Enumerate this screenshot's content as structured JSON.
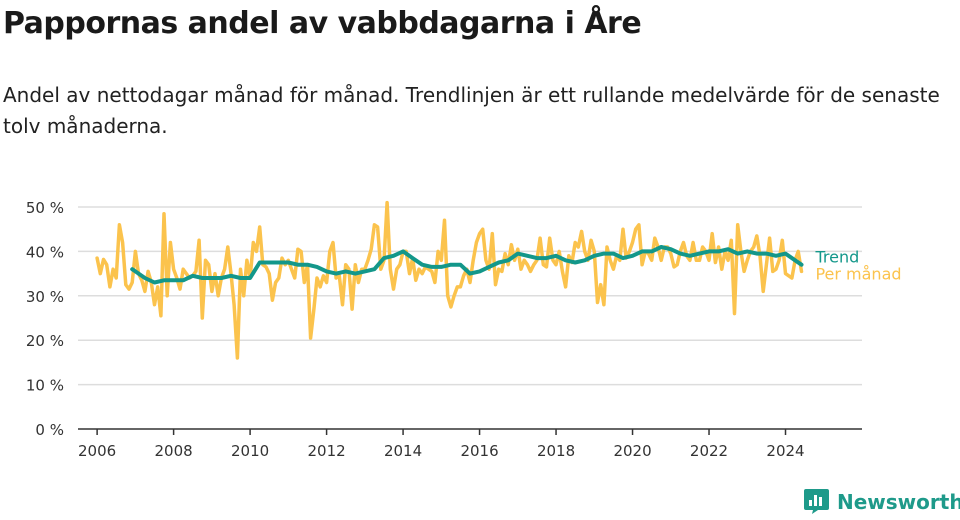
{
  "title": "Pappornas andel av vabbdagarna i Åre",
  "subtitle": "Andel av nettodagar månad för månad. Trendlinjen är ett rullande medelvärde för de senaste tolv månaderna.",
  "brand": "Newsworthy",
  "colors": {
    "monthly": "#fbc34d",
    "trend": "#13978a",
    "grid": "#dddddd",
    "axis": "#333333"
  },
  "chart_data": {
    "type": "line",
    "y_tick_labels": [
      "0 %",
      "10 %",
      "20 %",
      "30 %",
      "40 %",
      "50 %"
    ],
    "y_ticks": [
      0,
      10,
      20,
      30,
      40,
      50
    ],
    "x_tick_labels": [
      "2006",
      "2008",
      "2010",
      "2012",
      "2014",
      "2016",
      "2018",
      "2020",
      "2022",
      "2024"
    ],
    "x_ticks": [
      2006,
      2008,
      2010,
      2012,
      2014,
      2016,
      2018,
      2020,
      2022,
      2024
    ],
    "xlim": [
      2005.5,
      2026.0
    ],
    "ylim": [
      0,
      52
    ],
    "series": [
      {
        "name": "Per månad",
        "label": "Per månad",
        "x": [
          2006.0,
          2006.083,
          2006.167,
          2006.25,
          2006.333,
          2006.417,
          2006.5,
          2006.583,
          2006.667,
          2006.75,
          2006.833,
          2006.917,
          2007.0,
          2007.083,
          2007.167,
          2007.25,
          2007.333,
          2007.417,
          2007.5,
          2007.583,
          2007.667,
          2007.75,
          2007.833,
          2007.917,
          2008.0,
          2008.083,
          2008.167,
          2008.25,
          2008.333,
          2008.417,
          2008.5,
          2008.583,
          2008.667,
          2008.75,
          2008.833,
          2008.917,
          2009.0,
          2009.083,
          2009.167,
          2009.25,
          2009.333,
          2009.417,
          2009.5,
          2009.583,
          2009.667,
          2009.75,
          2009.833,
          2009.917,
          2010.0,
          2010.083,
          2010.167,
          2010.25,
          2010.333,
          2010.417,
          2010.5,
          2010.583,
          2010.667,
          2010.75,
          2010.833,
          2010.917,
          2011.0,
          2011.083,
          2011.167,
          2011.25,
          2011.333,
          2011.417,
          2011.5,
          2011.583,
          2011.667,
          2011.75,
          2011.833,
          2011.917,
          2012.0,
          2012.083,
          2012.167,
          2012.25,
          2012.333,
          2012.417,
          2012.5,
          2012.583,
          2012.667,
          2012.75,
          2012.833,
          2012.917,
          2013.0,
          2013.083,
          2013.167,
          2013.25,
          2013.333,
          2013.417,
          2013.5,
          2013.583,
          2013.667,
          2013.75,
          2013.833,
          2013.917,
          2014.0,
          2014.083,
          2014.167,
          2014.25,
          2014.333,
          2014.417,
          2014.5,
          2014.583,
          2014.667,
          2014.75,
          2014.833,
          2014.917,
          2015.0,
          2015.083,
          2015.167,
          2015.25,
          2015.333,
          2015.417,
          2015.5,
          2015.583,
          2015.667,
          2015.75,
          2015.833,
          2015.917,
          2016.0,
          2016.083,
          2016.167,
          2016.25,
          2016.333,
          2016.417,
          2016.5,
          2016.583,
          2016.667,
          2016.75,
          2016.833,
          2016.917,
          2017.0,
          2017.083,
          2017.167,
          2017.25,
          2017.333,
          2017.417,
          2017.5,
          2017.583,
          2017.667,
          2017.75,
          2017.833,
          2017.917,
          2018.0,
          2018.083,
          2018.167,
          2018.25,
          2018.333,
          2018.417,
          2018.5,
          2018.583,
          2018.667,
          2018.75,
          2018.833,
          2018.917,
          2019.0,
          2019.083,
          2019.167,
          2019.25,
          2019.333,
          2019.417,
          2019.5,
          2019.583,
          2019.667,
          2019.75,
          2019.833,
          2019.917,
          2020.0,
          2020.083,
          2020.167,
          2020.25,
          2020.333,
          2020.417,
          2020.5,
          2020.583,
          2020.667,
          2020.75,
          2020.833,
          2020.917,
          2021.0,
          2021.083,
          2021.167,
          2021.25,
          2021.333,
          2021.417,
          2021.5,
          2021.583,
          2021.667,
          2021.75,
          2021.833,
          2021.917,
          2022.0,
          2022.083,
          2022.167,
          2022.25,
          2022.333,
          2022.417,
          2022.5,
          2022.583,
          2022.667,
          2022.75,
          2022.833,
          2022.917,
          2023.0,
          2023.083,
          2023.167,
          2023.25,
          2023.333,
          2023.417,
          2023.5,
          2023.583,
          2023.667,
          2023.75,
          2023.833,
          2023.917,
          2024.0,
          2024.083,
          2024.167,
          2024.25,
          2024.333,
          2024.417
        ],
        "y": [
          38.5,
          35.0,
          38.2,
          37.0,
          32.0,
          36.0,
          34.0,
          46.0,
          42.0,
          32.5,
          31.5,
          33.0,
          40.0,
          35.0,
          33.5,
          31.0,
          35.5,
          33.0,
          28.0,
          32.0,
          25.5,
          48.5,
          30.0,
          42.0,
          36.0,
          34.0,
          31.5,
          36.0,
          35.0,
          34.0,
          34.5,
          35.5,
          42.5,
          25.0,
          38.0,
          37.0,
          31.0,
          35.0,
          30.0,
          34.0,
          36.0,
          41.0,
          35.0,
          28.0,
          16.0,
          36.0,
          30.0,
          38.0,
          34.0,
          42.0,
          40.0,
          45.5,
          37.0,
          36.5,
          35.0,
          29.0,
          33.0,
          34.0,
          38.5,
          37.0,
          38.0,
          36.0,
          34.0,
          40.5,
          40.0,
          33.0,
          37.0,
          20.5,
          27.0,
          34.0,
          32.0,
          34.5,
          33.0,
          40.0,
          42.0,
          34.0,
          34.5,
          28.0,
          37.0,
          36.0,
          27.0,
          37.0,
          33.0,
          36.0,
          36.0,
          38.0,
          40.5,
          46.0,
          45.5,
          36.0,
          38.0,
          51.0,
          36.0,
          31.5,
          36.0,
          37.0,
          40.0,
          40.0,
          35.0,
          38.5,
          33.5,
          36.0,
          35.0,
          36.5,
          36.0,
          35.5,
          33.0,
          40.0,
          38.0,
          47.0,
          30.0,
          27.5,
          30.0,
          32.0,
          32.0,
          34.5,
          36.0,
          33.0,
          38.0,
          42.0,
          44.0,
          45.0,
          38.0,
          36.0,
          44.0,
          32.5,
          36.0,
          35.5,
          39.5,
          37.0,
          41.5,
          38.0,
          40.5,
          36.0,
          38.0,
          37.0,
          35.5,
          37.0,
          38.0,
          43.0,
          37.0,
          36.5,
          43.0,
          38.0,
          37.0,
          40.0,
          35.5,
          32.0,
          39.0,
          37.5,
          42.0,
          41.0,
          44.5,
          40.0,
          38.0,
          42.5,
          40.0,
          28.5,
          32.5,
          28.0,
          41.0,
          38.0,
          36.0,
          39.0,
          38.0,
          45.0,
          38.5,
          40.0,
          42.0,
          45.0,
          46.0,
          37.0,
          40.0,
          39.5,
          38.0,
          43.0,
          41.0,
          38.0,
          41.0,
          41.0,
          39.5,
          36.5,
          37.0,
          40.0,
          42.0,
          39.0,
          38.0,
          42.0,
          38.0,
          38.0,
          41.0,
          40.0,
          38.0,
          44.0,
          37.5,
          41.0,
          36.0,
          40.0,
          38.0,
          42.5,
          26.0,
          46.0,
          40.0,
          35.5,
          38.0,
          40.0,
          41.0,
          43.5,
          39.0,
          31.0,
          37.0,
          43.0,
          35.5,
          36.0,
          38.0,
          42.5,
          35.0,
          34.5,
          34.0,
          38.0,
          40.0,
          35.5
        ]
      },
      {
        "name": "Trend",
        "label": "Trend",
        "x": [
          2006.917,
          2007.0,
          2007.25,
          2007.5,
          2007.75,
          2008.0,
          2008.25,
          2008.5,
          2008.75,
          2009.0,
          2009.25,
          2009.5,
          2009.75,
          2010.0,
          2010.25,
          2010.5,
          2010.75,
          2011.0,
          2011.25,
          2011.5,
          2011.75,
          2012.0,
          2012.25,
          2012.5,
          2012.75,
          2013.0,
          2013.25,
          2013.5,
          2013.75,
          2014.0,
          2014.25,
          2014.5,
          2014.75,
          2015.0,
          2015.25,
          2015.5,
          2015.75,
          2016.0,
          2016.25,
          2016.5,
          2016.75,
          2017.0,
          2017.25,
          2017.5,
          2017.75,
          2018.0,
          2018.25,
          2018.5,
          2018.75,
          2019.0,
          2019.25,
          2019.5,
          2019.75,
          2020.0,
          2020.25,
          2020.5,
          2020.75,
          2021.0,
          2021.25,
          2021.5,
          2021.75,
          2022.0,
          2022.25,
          2022.5,
          2022.75,
          2023.0,
          2023.25,
          2023.5,
          2023.75,
          2024.0,
          2024.25,
          2024.417
        ],
        "y": [
          36.0,
          35.5,
          34.0,
          33.0,
          33.5,
          33.5,
          33.5,
          34.5,
          34.0,
          34.0,
          34.0,
          34.5,
          34.0,
          34.0,
          37.5,
          37.5,
          37.5,
          37.5,
          37.0,
          37.0,
          36.5,
          35.5,
          35.0,
          35.5,
          35.0,
          35.5,
          36.0,
          38.5,
          39.0,
          40.0,
          38.5,
          37.0,
          36.5,
          36.5,
          37.0,
          37.0,
          35.0,
          35.5,
          36.5,
          37.5,
          38.0,
          39.5,
          39.0,
          38.5,
          38.5,
          39.0,
          38.0,
          37.5,
          38.0,
          39.0,
          39.5,
          39.5,
          38.5,
          39.0,
          40.0,
          40.0,
          41.0,
          40.5,
          39.5,
          39.0,
          39.5,
          40.0,
          40.0,
          40.5,
          39.5,
          40.0,
          39.5,
          39.5,
          39.0,
          39.5,
          38.0,
          37.0
        ]
      }
    ]
  }
}
